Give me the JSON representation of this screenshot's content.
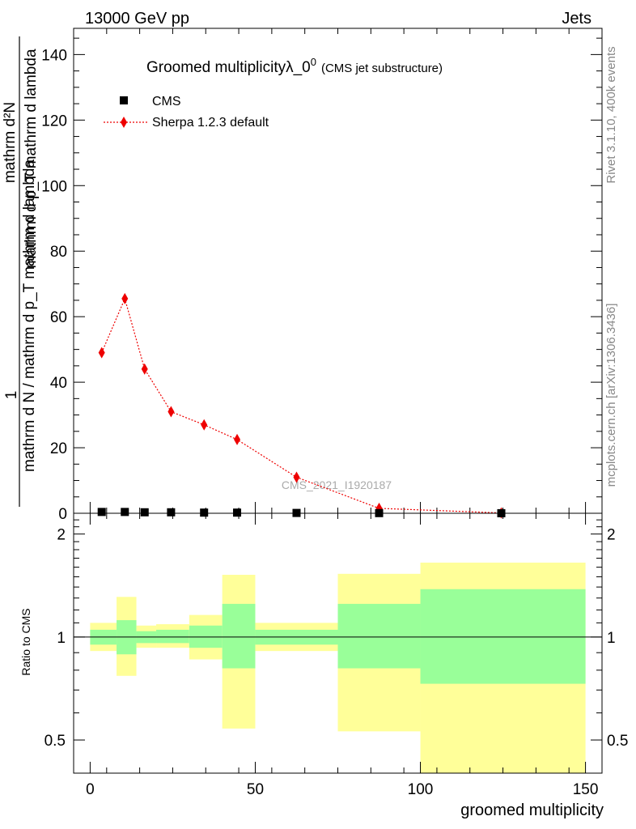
{
  "header": {
    "left": "13000 GeV pp",
    "right": "Jets"
  },
  "side_labels": {
    "rivet": "Rivet 3.1.10,  400k events",
    "mcplots": "mcplots.cern.ch [arXiv:1306.3436]"
  },
  "chart_data": [
    {
      "type": "scatter",
      "title": "Groomed multiplicity",
      "title_symbol": "λ_0",
      "title_superscript": "0",
      "subtitle": "(CMS jet substructure)",
      "watermark": "CMS_2021_I1920187",
      "ylabel_lines": [
        "1",
        "mathrm d N / mathrm d p_T mathrm d lambda",
        "mathrm d^2 N",
        "mathrm d p_T mathrm d lambda"
      ],
      "ylabel_num": "mathrm d²N",
      "ylabel_den": "mathrm d p_T mathrm d lambda",
      "ylabel_lead_num": "1",
      "ylabel_lead_den": "mathrm d N / mathrm d p_T mathrm d lambda",
      "xlim": [
        -5,
        155
      ],
      "ylim": [
        0,
        148
      ],
      "yticks": [
        0,
        20,
        40,
        60,
        80,
        100,
        120,
        140
      ],
      "legend": [
        {
          "name": "CMS",
          "color": "#000000",
          "marker": "square"
        },
        {
          "name": "Sherpa 1.2.3 default",
          "color": "#ee0000",
          "marker": "diamond",
          "line": "dotted"
        }
      ],
      "series": [
        {
          "name": "CMS",
          "x": [
            3.5,
            10.5,
            16.5,
            24.5,
            34.5,
            44.5,
            62.5,
            87.5,
            124.5
          ],
          "y": [
            0.4,
            0.4,
            0.3,
            0.3,
            0.2,
            0.2,
            0.1,
            0.05,
            0.02
          ]
        },
        {
          "name": "Sherpa 1.2.3 default",
          "x": [
            3.5,
            10.5,
            16.5,
            24.5,
            34.5,
            44.5,
            62.5,
            87.5,
            124.5
          ],
          "y": [
            49,
            65.5,
            44,
            31,
            27,
            22.5,
            11,
            1.5,
            0.1
          ]
        }
      ]
    },
    {
      "type": "area",
      "ylabel": "Ratio to CMS",
      "xlabel": "groomed multiplicity",
      "xlim": [
        -5,
        155
      ],
      "ylim": [
        0.4,
        2.3
      ],
      "xticks": [
        0,
        50,
        100,
        150
      ],
      "yticks": [
        0.5,
        1,
        2
      ],
      "ytick_labels": [
        "0.5",
        "1",
        "2"
      ],
      "reference_line": 1,
      "bands": [
        {
          "x0": 0,
          "x1": 8,
          "inner": [
            0.95,
            1.05
          ],
          "outer": [
            0.91,
            1.1
          ]
        },
        {
          "x0": 8,
          "x1": 14,
          "inner": [
            0.89,
            1.12
          ],
          "outer": [
            0.77,
            1.31
          ]
        },
        {
          "x0": 14,
          "x1": 20,
          "inner": [
            0.96,
            1.04
          ],
          "outer": [
            0.93,
            1.08
          ]
        },
        {
          "x0": 20,
          "x1": 30,
          "inner": [
            0.96,
            1.05
          ],
          "outer": [
            0.93,
            1.09
          ]
        },
        {
          "x0": 30,
          "x1": 40,
          "inner": [
            0.93,
            1.08
          ],
          "outer": [
            0.86,
            1.16
          ]
        },
        {
          "x0": 40,
          "x1": 50,
          "inner": [
            0.81,
            1.25
          ],
          "outer": [
            0.54,
            1.52
          ]
        },
        {
          "x0": 50,
          "x1": 75,
          "inner": [
            0.95,
            1.05
          ],
          "outer": [
            0.91,
            1.1
          ]
        },
        {
          "x0": 75,
          "x1": 100,
          "inner": [
            0.81,
            1.25
          ],
          "outer": [
            0.53,
            1.53
          ]
        },
        {
          "x0": 100,
          "x1": 150,
          "inner": [
            0.73,
            1.38
          ],
          "outer": [
            0.35,
            1.65
          ]
        }
      ],
      "colors": {
        "inner": "#99ff99",
        "outer": "#ffff99"
      }
    }
  ]
}
